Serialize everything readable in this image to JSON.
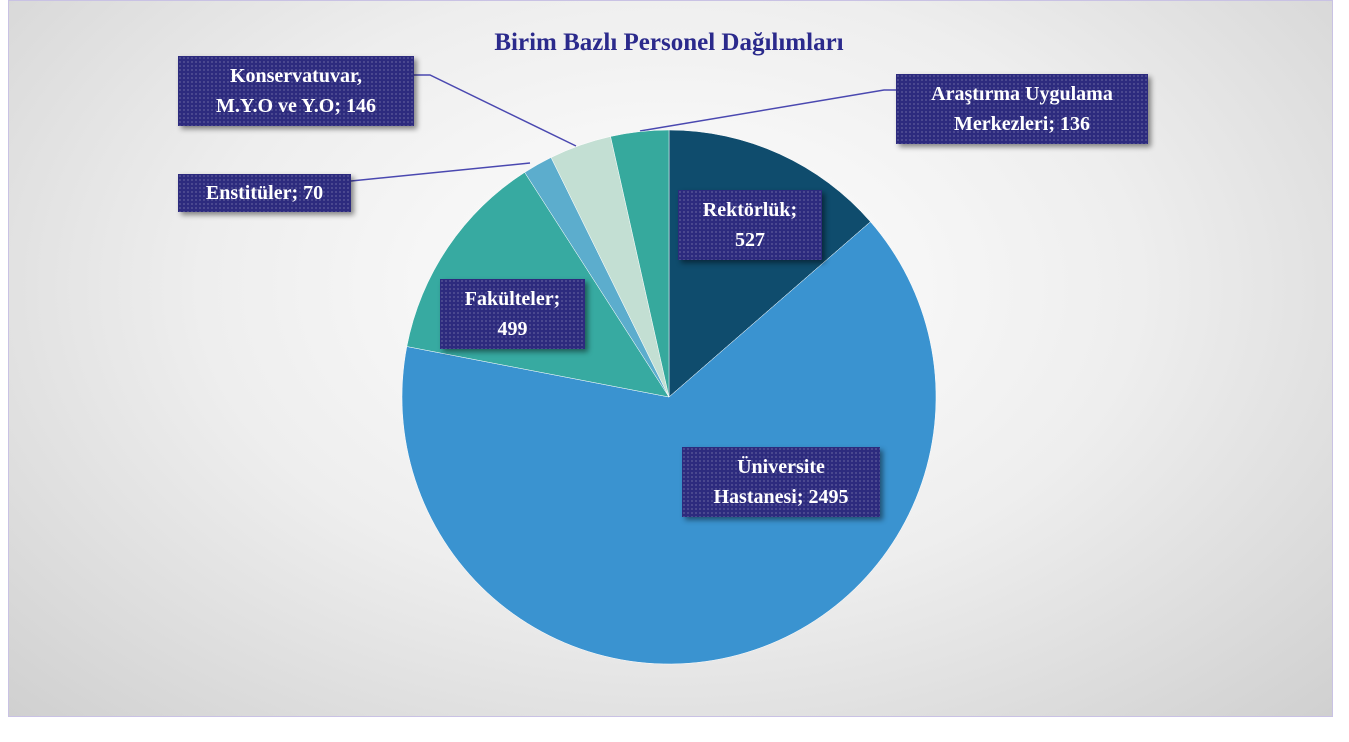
{
  "chart_data": {
    "type": "pie",
    "title": "Birim Bazlı Personel Dağılımları",
    "values": [
      527,
      2495,
      499,
      70,
      146,
      136
    ],
    "value_labels": [
      "Rektörlük;\n527",
      "Üniversite\nHastanesi; 2495",
      "Fakülteler;\n499",
      "Enstitüler; 70",
      "Konservatuvar,\nM.Y.O ve Y.O; 146",
      "Araştırma Uygulama\nMerkezleri; 136"
    ],
    "colors": [
      "#0f4c6d",
      "#3a93d0",
      "#37aaa1",
      "#5cadcd",
      "#c3dfd3",
      "#36a99d"
    ]
  }
}
